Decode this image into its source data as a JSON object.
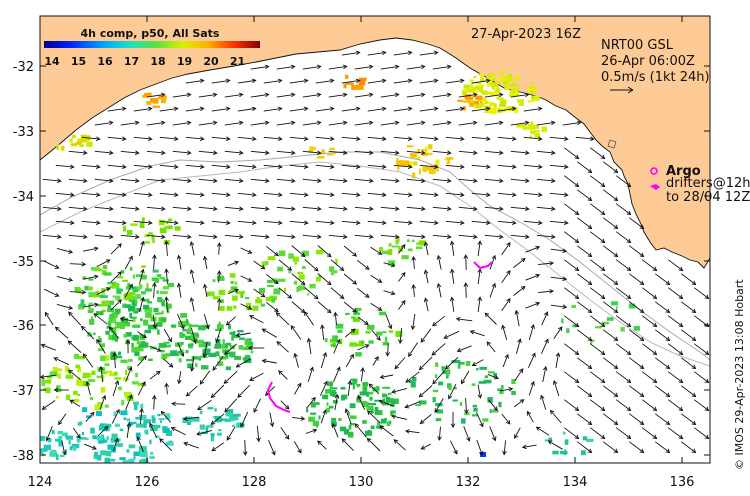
{
  "map": {
    "date_title": "27-Apr-2023 16Z",
    "product": {
      "title": "NRT00 GSL",
      "time": "26-Apr 06:00Z",
      "current_scale": "0.5m/s (1kt 24h)"
    },
    "colorbar": {
      "title": "4h comp, p50, All Sats",
      "ticks": [
        "14",
        "15",
        "16",
        "17",
        "18",
        "19",
        "20",
        "21"
      ]
    },
    "legend": {
      "argo": "Argo",
      "drifters_line1": "drifters@12h",
      "drifters_line2": "to 28/04 12Z"
    },
    "y_axis": {
      "ticks": [
        "-32",
        "-33",
        "-34",
        "-35",
        "-36",
        "-37",
        "-38"
      ]
    },
    "x_axis": {
      "ticks": [
        "124",
        "126",
        "128",
        "130",
        "132",
        "134",
        "136"
      ]
    },
    "credit": "© IMOS 29-Apr-2023 13:08 Hobart",
    "colors": {
      "land": "#fecb96",
      "ocean": "#ffffff",
      "arrow": "#111111",
      "isobath": "#a8a8a8",
      "drifter": "#ff00ff"
    }
  }
}
